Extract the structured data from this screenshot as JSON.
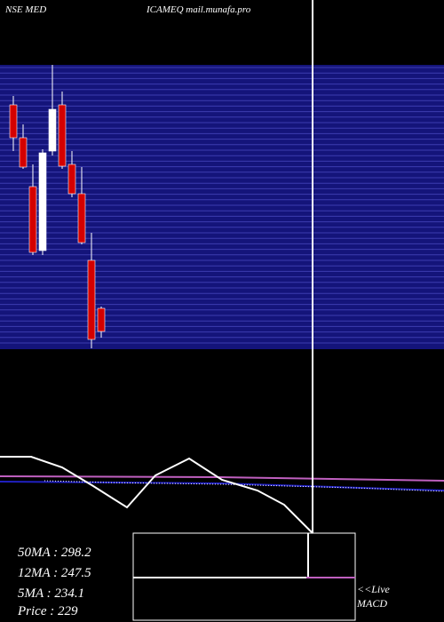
{
  "chart_data": {
    "type": "candlestick",
    "title": "NSE MED",
    "subtitle": "ICAMEQ mail.munafa.pro",
    "open": [
      356.5,
      338,
      310.5,
      274.5,
      330.5,
      356.5,
      323,
      306.5,
      269,
      242
    ],
    "close": [
      338,
      321.5,
      273.5,
      329.5,
      354,
      322,
      306.5,
      279,
      224.5,
      229
    ],
    "high": [
      361.5,
      345.5,
      323,
      331.5,
      379,
      364,
      330.5,
      321.5,
      284.5,
      243
    ],
    "low": [
      330.5,
      320.5,
      272,
      272,
      328,
      320.5,
      304.5,
      278,
      219.5,
      225.5
    ],
    "up_color": "#ffffff",
    "down_color": "#d40000",
    "ylim": [
      219.5,
      379
    ],
    "ma_labels": [
      "50MA : 298.2",
      "12MA : 247.5",
      "5MA : 234.1",
      "Price   : 229"
    ],
    "annotations": [
      "<<Live",
      "MACD"
    ]
  }
}
